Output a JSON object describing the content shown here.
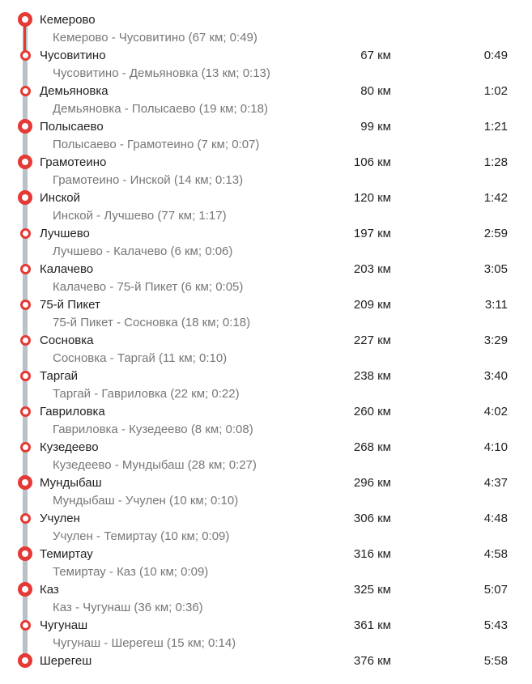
{
  "colors": {
    "accent": "#e53935",
    "rail": "#b8c0c8",
    "text": "#222222",
    "muted": "#777777"
  },
  "route": {
    "stations": [
      {
        "name": "Кемерово",
        "distance": "",
        "time": "",
        "major": true
      },
      {
        "name": "Чусовитино",
        "distance": "67 км",
        "time": "0:49",
        "major": false
      },
      {
        "name": "Демьяновка",
        "distance": "80 км",
        "time": "1:02",
        "major": false
      },
      {
        "name": "Полысаево",
        "distance": "99 км",
        "time": "1:21",
        "major": true
      },
      {
        "name": "Грамотеино",
        "distance": "106 км",
        "time": "1:28",
        "major": true
      },
      {
        "name": "Инской",
        "distance": "120 км",
        "time": "1:42",
        "major": true
      },
      {
        "name": "Лучшево",
        "distance": "197 км",
        "time": "2:59",
        "major": false
      },
      {
        "name": "Калачево",
        "distance": "203 км",
        "time": "3:05",
        "major": false
      },
      {
        "name": "75-й Пикет",
        "distance": "209 км",
        "time": "3:11",
        "major": false
      },
      {
        "name": "Сосновка",
        "distance": "227 км",
        "time": "3:29",
        "major": false
      },
      {
        "name": "Таргай",
        "distance": "238 км",
        "time": "3:40",
        "major": false
      },
      {
        "name": "Гавриловка",
        "distance": "260 км",
        "time": "4:02",
        "major": false
      },
      {
        "name": "Кузедеево",
        "distance": "268 км",
        "time": "4:10",
        "major": false
      },
      {
        "name": "Мундыбаш",
        "distance": "296 км",
        "time": "4:37",
        "major": true
      },
      {
        "name": "Учулен",
        "distance": "306 км",
        "time": "4:48",
        "major": false
      },
      {
        "name": "Темиртау",
        "distance": "316 км",
        "time": "4:58",
        "major": true
      },
      {
        "name": "Каз",
        "distance": "325 км",
        "time": "5:07",
        "major": true
      },
      {
        "name": "Чугунаш",
        "distance": "361 км",
        "time": "5:43",
        "major": false
      },
      {
        "name": "Шерегеш",
        "distance": "376 км",
        "time": "5:58",
        "major": true
      }
    ],
    "segments": [
      "Кемерово - Чусовитино (67 км; 0:49)",
      "Чусовитино - Демьяновка (13 км; 0:13)",
      "Демьяновка - Полысаево (19 км; 0:18)",
      "Полысаево - Грамотеино (7 км; 0:07)",
      "Грамотеино - Инской (14 км; 0:13)",
      "Инской - Лучшево (77 км; 1:17)",
      "Лучшево - Калачево (6 км; 0:06)",
      "Калачево - 75-й Пикет (6 км; 0:05)",
      "75-й Пикет - Сосновка (18 км; 0:18)",
      "Сосновка - Таргай (11 км; 0:10)",
      "Таргай - Гавриловка (22 км; 0:22)",
      "Гавриловка - Кузедеево (8 км; 0:08)",
      "Кузедеево - Мундыбаш (28 км; 0:27)",
      "Мундыбаш - Учулен (10 км; 0:10)",
      "Учулен - Темиртау (10 км; 0:09)",
      "Темиртау - Каз (10 км; 0:09)",
      "Каз - Чугунаш (36 км; 0:36)",
      "Чугунаш - Шерегеш (15 км; 0:14)"
    ]
  }
}
